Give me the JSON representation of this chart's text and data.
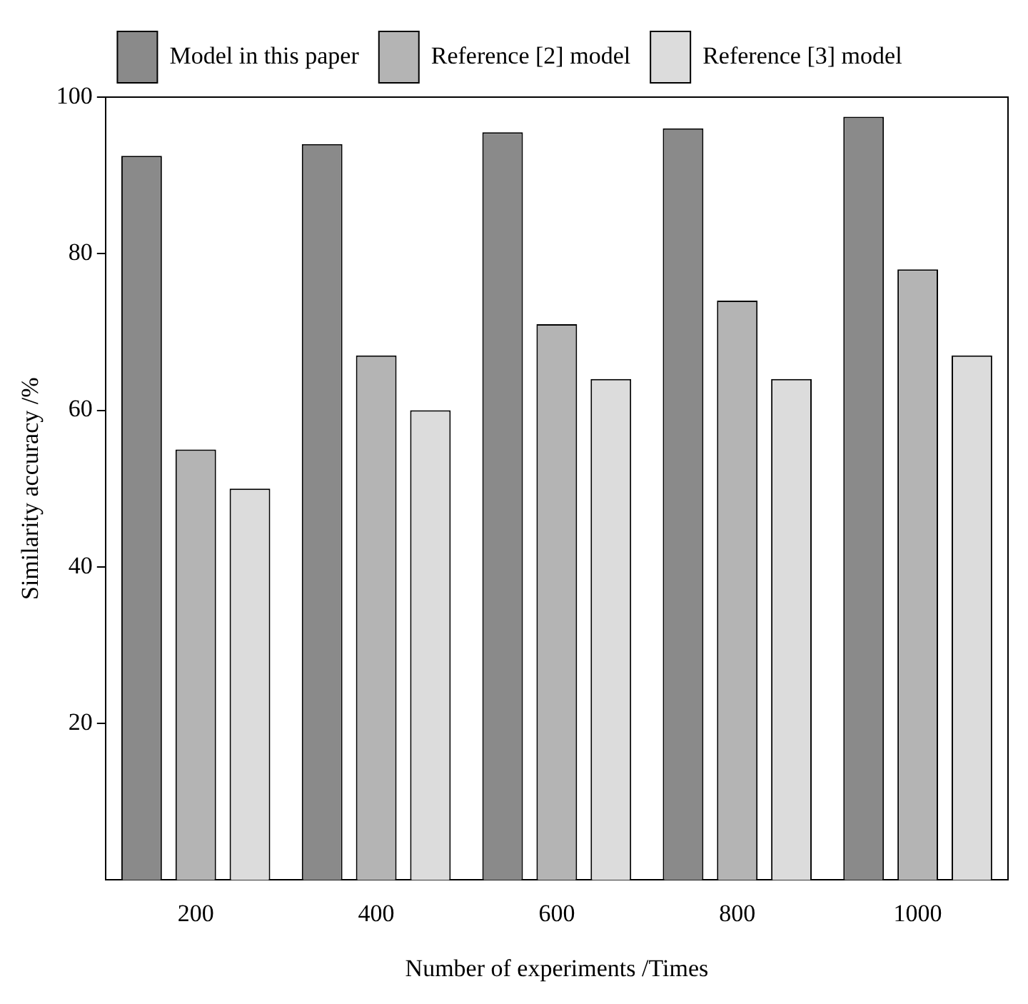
{
  "chart_data": {
    "type": "bar",
    "xlabel": "Number of experiments /Times",
    "ylabel": "Similarity accuracy /%",
    "categories": [
      "200",
      "400",
      "600",
      "800",
      "1000"
    ],
    "series": [
      {
        "name": "Model in this paper",
        "color": "#8a8a8a",
        "values": [
          92.5,
          94,
          95.5,
          96,
          97.5
        ]
      },
      {
        "name": "Reference [2] model",
        "color": "#b4b4b4",
        "values": [
          55,
          67,
          71,
          74,
          78
        ]
      },
      {
        "name": "Reference [3] model",
        "color": "#dcdcdc",
        "values": [
          50,
          60,
          64,
          64,
          67
        ]
      }
    ],
    "ylim": [
      0,
      100
    ],
    "yticks": [
      20,
      40,
      60,
      80,
      100
    ],
    "grid": false,
    "legend": "top"
  }
}
